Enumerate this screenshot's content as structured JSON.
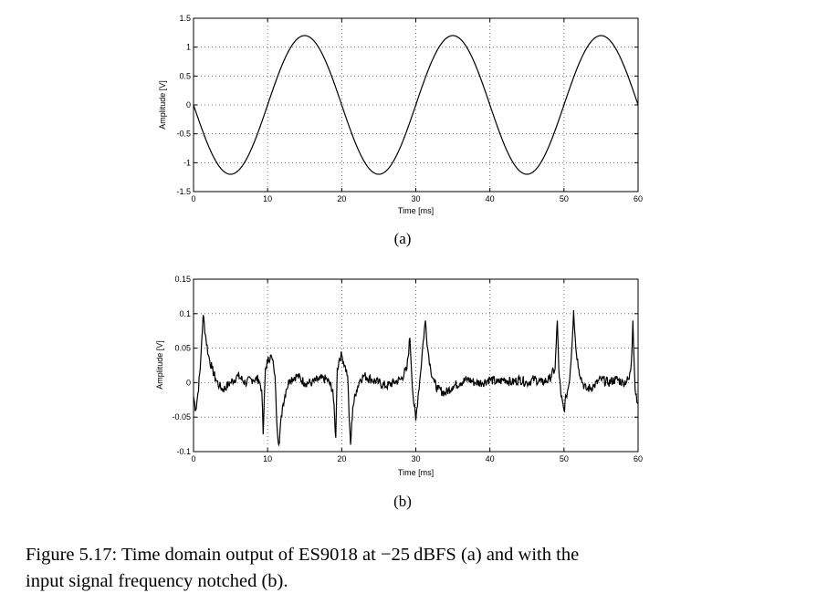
{
  "panels": [
    {
      "label": "(a)",
      "xlabel": "Time [ms]",
      "ylabel": "Amplitude [V]"
    },
    {
      "label": "(b)",
      "xlabel": "Time [ms]",
      "ylabel": "Amplitude [V]"
    }
  ],
  "caption": {
    "line1": "Figure 5.17: Time domain output of ES9018 at −25 dBFS (a) and with the",
    "line2": "input signal frequency notched (b)."
  },
  "chart_data": [
    {
      "type": "line",
      "title": "",
      "xlabel": "Time [ms]",
      "ylabel": "Amplitude [V]",
      "xlim": [
        0,
        60
      ],
      "ylim": [
        -1.5,
        1.5
      ],
      "xticks": [
        0,
        10,
        20,
        30,
        40,
        50,
        60
      ],
      "yticks": [
        -1.5,
        -1,
        -0.5,
        0,
        0.5,
        1,
        1.5
      ],
      "ytick_labels": [
        "-1.5",
        "-1",
        "-0.5",
        "0",
        "0.5",
        "1",
        "1.5"
      ],
      "grid": true,
      "line_color": "#000000",
      "series": [
        {
          "x": [
            0,
            2.5,
            5,
            7.5,
            10,
            12.5,
            15,
            17.5,
            20,
            22.5,
            25,
            27.5,
            30,
            32.5,
            35,
            37.5,
            40,
            42.5,
            45,
            47.5,
            50,
            52.5,
            55,
            57.5,
            60
          ],
          "values": [
            0,
            -0.85,
            -1.2,
            -0.85,
            0,
            0.85,
            1.2,
            0.85,
            0,
            -0.85,
            -1.2,
            -0.85,
            0,
            0.85,
            1.2,
            0.85,
            0,
            -0.85,
            -1.2,
            -0.85,
            0,
            0.85,
            1.2,
            0.85,
            0
          ]
        }
      ]
    },
    {
      "type": "line",
      "title": "",
      "xlabel": "Time [ms]",
      "ylabel": "Amplitude [V]",
      "xlim": [
        0,
        60
      ],
      "ylim": [
        -0.1,
        0.15
      ],
      "xticks": [
        0,
        10,
        20,
        30,
        40,
        50,
        60
      ],
      "yticks": [
        -0.1,
        -0.05,
        0,
        0.05,
        0.1,
        0.15
      ],
      "ytick_labels": [
        "-0.1",
        "-0.05",
        "0",
        "0.05",
        "0.1",
        "0.15"
      ],
      "grid": true,
      "line_color": "#000000",
      "series": [
        {
          "x": [
            0,
            0.3,
            0.6,
            0.9,
            1.1,
            1.3,
            1.6,
            2.0,
            2.5,
            3.0,
            3.5,
            4.0,
            5.0,
            6.0,
            7.0,
            8.0,
            8.8,
            9.2,
            9.4,
            9.7,
            10.0,
            10.4,
            10.8,
            11.0,
            11.2,
            11.5,
            12.0,
            12.5,
            13.0,
            14.0,
            15.0,
            16.0,
            17.0,
            18.0,
            18.8,
            19.2,
            19.4,
            19.7,
            20.0,
            20.4,
            20.8,
            21.0,
            21.2,
            21.5,
            22.0,
            22.5,
            23.0,
            24.0,
            25.0,
            26.0,
            27.0,
            28.0,
            28.8,
            29.2,
            29.6,
            30.0,
            30.3,
            30.6,
            31.0,
            31.3,
            31.6,
            32.0,
            32.5,
            33.0,
            34.0,
            35.0,
            36.0,
            37.0,
            38.0,
            39.0,
            40.0,
            41.0,
            42.0,
            43.0,
            44.0,
            45.0,
            46.0,
            47.0,
            48.0,
            48.8,
            49.1,
            49.3,
            49.6,
            50.0,
            50.3,
            50.7,
            51.0,
            51.3,
            51.6,
            52.0,
            52.5,
            53.0,
            54.0,
            55.0,
            56.0,
            57.0,
            58.0,
            58.8,
            59.1,
            59.3,
            59.6,
            60.0
          ],
          "values": [
            -0.02,
            -0.04,
            -0.015,
            0.02,
            0.06,
            0.098,
            0.07,
            0.04,
            0.02,
            0.005,
            -0.005,
            -0.01,
            0.0,
            0.01,
            0.0,
            0.005,
            0.005,
            -0.01,
            -0.075,
            0.02,
            0.03,
            0.04,
            0.025,
            0.01,
            -0.05,
            -0.09,
            -0.035,
            -0.01,
            0.005,
            0.01,
            0.0,
            0.0,
            0.005,
            0.005,
            -0.01,
            -0.08,
            0.02,
            0.035,
            0.04,
            0.025,
            0.01,
            -0.05,
            -0.09,
            -0.035,
            -0.01,
            0.005,
            0.01,
            0.005,
            0.0,
            -0.005,
            0.0,
            0.005,
            0.02,
            0.065,
            -0.015,
            -0.055,
            -0.02,
            0.01,
            0.06,
            0.09,
            0.05,
            0.02,
            0.0,
            -0.01,
            -0.015,
            -0.005,
            0.0,
            0.005,
            0.0,
            0.0,
            0.005,
            0.0,
            0.005,
            0.0,
            0.005,
            0.0,
            0.005,
            0.0,
            0.005,
            0.02,
            0.09,
            0.02,
            -0.02,
            -0.04,
            -0.02,
            0.0,
            0.04,
            0.105,
            0.05,
            0.02,
            0.0,
            -0.01,
            -0.005,
            0.005,
            0.0,
            0.005,
            0.0,
            0.005,
            0.03,
            0.09,
            -0.01,
            -0.03
          ]
        }
      ]
    }
  ]
}
